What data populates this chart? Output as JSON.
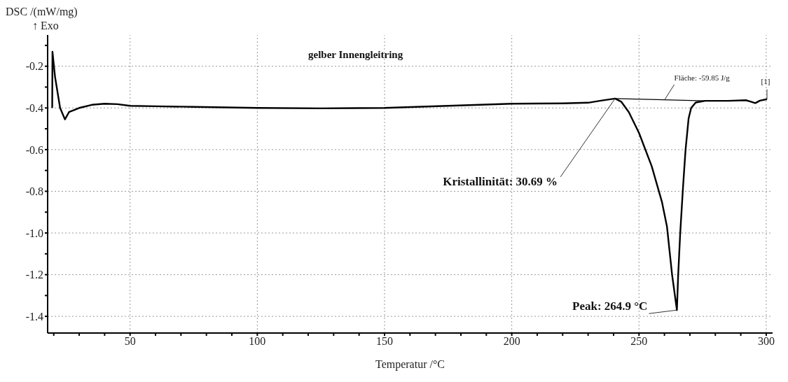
{
  "chart_data": {
    "type": "line",
    "title": "gelber Innengleitring",
    "xlabel": "Temperatur /°C",
    "ylabel": "DSC /(mW/mg)",
    "annotations": [
      "↑ Exo",
      {
        "text": "Kristallinität: 30.69 %",
        "x": 240.6,
        "y": -0.355
      },
      {
        "text": "Fläche: -59.85 J/g",
        "x": 260,
        "y": -0.362
      },
      {
        "text": "Peak: 264.9 °C",
        "x": 264.9,
        "y": -1.37
      },
      {
        "text": "[1]",
        "x": 300.3,
        "y": -0.358
      }
    ],
    "series": [
      {
        "color": "#000000",
        "x": [
          19.4,
          19.5,
          20.5,
          22.5,
          24.4,
          26,
          30,
          35,
          40,
          45,
          50,
          60,
          75,
          100,
          125,
          150,
          175,
          200,
          220,
          230,
          235,
          240.6,
          243,
          246,
          250,
          255,
          259,
          261,
          263,
          264.9,
          265.4,
          266.2,
          267.3,
          268.3,
          269.5,
          270.5,
          272.3,
          276,
          285,
          292,
          294,
          295.7,
          297.5,
          300.3
        ],
        "values": [
          -0.4,
          -0.13,
          -0.25,
          -0.4,
          -0.455,
          -0.42,
          -0.4,
          -0.385,
          -0.38,
          -0.382,
          -0.39,
          -0.392,
          -0.395,
          -0.4,
          -0.402,
          -0.4,
          -0.39,
          -0.38,
          -0.378,
          -0.375,
          -0.365,
          -0.355,
          -0.37,
          -0.42,
          -0.52,
          -0.68,
          -0.85,
          -0.97,
          -1.2,
          -1.37,
          -1.2,
          -1.0,
          -0.78,
          -0.6,
          -0.45,
          -0.4,
          -0.374,
          -0.366,
          -0.366,
          -0.363,
          -0.37,
          -0.377,
          -0.365,
          -0.358
        ]
      },
      {
        "color": "#000000",
        "x": [
          240.6,
          276
        ],
        "values": [
          -0.355,
          -0.366
        ]
      }
    ],
    "xlim": [
      17.6,
      302.5
    ],
    "xticks": [
      {
        "value": 20,
        "label": null
      },
      {
        "value": 30,
        "label": null
      },
      {
        "value": 40,
        "label": null
      },
      50,
      {
        "value": 60,
        "label": null
      },
      {
        "value": 70,
        "label": null
      },
      {
        "value": 80,
        "label": null
      },
      {
        "value": 90,
        "label": null
      },
      100,
      {
        "value": 110,
        "label": null
      },
      {
        "value": 120,
        "label": null
      },
      {
        "value": 130,
        "label": null
      },
      {
        "value": 140,
        "label": null
      },
      150,
      {
        "value": 160,
        "label": null
      },
      {
        "value": 170,
        "label": null
      },
      {
        "value": 180,
        "label": null
      },
      {
        "value": 190,
        "label": null
      },
      200,
      {
        "value": 210,
        "label": null
      },
      {
        "value": 220,
        "label": null
      },
      {
        "value": 230,
        "label": null
      },
      {
        "value": 240,
        "label": null
      },
      250,
      {
        "value": 260,
        "label": null
      },
      {
        "value": 270,
        "label": null
      },
      {
        "value": 280,
        "label": null
      },
      {
        "value": 290,
        "label": null
      },
      300
    ],
    "ylim": [
      -1.48,
      -0.05
    ],
    "yticks": [
      {
        "value": -0.1,
        "label": null
      },
      -0.2,
      {
        "value": -0.3,
        "label": null
      },
      -0.4,
      {
        "value": -0.5,
        "label": null
      },
      -0.6,
      {
        "value": -0.7,
        "label": null
      },
      -0.8,
      {
        "value": -0.9,
        "label": null
      },
      {
        "value": -1,
        "label": "-1.0"
      },
      {
        "value": -1.1,
        "label": null
      },
      -1.2,
      {
        "value": -1.3,
        "label": null
      },
      -1.4
    ],
    "grid": true,
    "line_style": "solid",
    "marker": "none"
  }
}
